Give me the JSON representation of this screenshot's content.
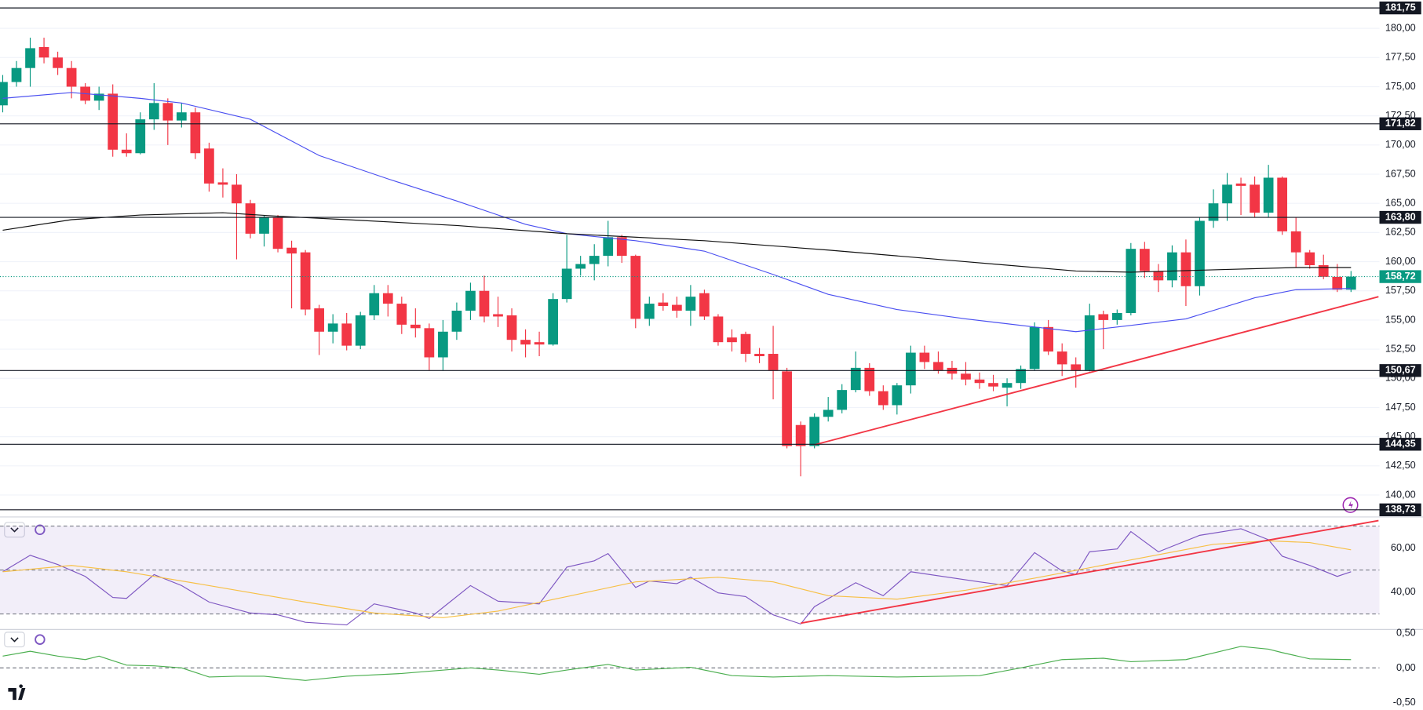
{
  "chart_data": [
    {
      "type": "candlestick",
      "up_color": "#089981",
      "down_color": "#f23645",
      "grid": true,
      "ylim": [
        138.12,
        182.43
      ],
      "yticks": [
        {
          "value": 140,
          "label": "140,00"
        },
        {
          "value": 142.5,
          "label": "142,50"
        },
        {
          "value": 145,
          "label": "145,00"
        },
        {
          "value": 147.5,
          "label": "147,50"
        },
        {
          "value": 150,
          "label": "150,00"
        },
        {
          "value": 152.5,
          "label": "152,50"
        },
        {
          "value": 155,
          "label": "155,00"
        },
        {
          "value": 157.5,
          "label": "157,50"
        },
        {
          "value": 160,
          "label": "160,00"
        },
        {
          "value": 162.5,
          "label": "162,50"
        },
        {
          "value": 165,
          "label": "165,00"
        },
        {
          "value": 167.5,
          "label": "167,50"
        },
        {
          "value": 170,
          "label": "170,00"
        },
        {
          "value": 172.5,
          "label": "172,50"
        },
        {
          "value": 175,
          "label": "175,00"
        },
        {
          "value": 177.5,
          "label": "177,50"
        },
        {
          "value": 180,
          "label": "180,00"
        }
      ],
      "open": [
        173.4,
        175.4,
        176.6,
        178.4,
        177.5,
        176.6,
        175,
        173.8,
        174.4,
        169.6,
        169.3,
        172.2,
        173.6,
        172.1,
        172.8,
        169.7,
        166.8,
        166.6,
        165,
        162.4,
        163.8,
        161.2,
        160.8,
        156,
        154,
        154.7,
        152.8,
        155.4,
        157.3,
        156.4,
        154.6,
        154.3,
        151.8,
        154,
        155.8,
        157.5,
        155.5,
        155.4,
        153.3,
        153.1,
        152.9,
        156.8,
        159.4,
        159.8,
        160.5,
        162.1,
        160.5,
        155.1,
        156.5,
        156.3,
        155.8,
        157.3,
        155.3,
        153.5,
        153.8,
        152.1,
        152.1,
        150.6,
        146,
        144.2,
        146.7,
        147.3,
        149,
        150.9,
        148.9,
        147.7,
        149.4,
        152.2,
        151.4,
        150.9,
        150.4,
        149.9,
        149.6,
        149.2,
        149.6,
        150.8,
        154.4,
        152.3,
        151.2,
        150.7,
        155.5,
        155,
        155.6,
        161.1,
        159.2,
        158.4,
        160.8,
        157.9,
        163.5,
        165,
        166.7,
        166.6,
        164.2,
        167.2,
        162.6,
        160.8,
        159.7,
        158.7,
        157.6
      ],
      "high": [
        176,
        177.2,
        179.2,
        179.2,
        178,
        177.2,
        175.3,
        175,
        175.2,
        171,
        172.8,
        175.3,
        174,
        173.6,
        173.2,
        170.2,
        168,
        167.5,
        165.3,
        164,
        164,
        161.8,
        161,
        156.3,
        155.5,
        155.6,
        155.7,
        158,
        158,
        157,
        156,
        154.7,
        155,
        156.5,
        158.2,
        158.8,
        157,
        156,
        154.2,
        154,
        157.3,
        162.3,
        160.5,
        161.5,
        163.5,
        162.3,
        160.6,
        157,
        157.3,
        157,
        158,
        157.6,
        155.5,
        154.2,
        154,
        152.6,
        154.5,
        150.9,
        146.3,
        147,
        148.4,
        149.5,
        152.3,
        151.3,
        149.4,
        149.6,
        152.8,
        152.8,
        152.3,
        151.5,
        151.4,
        150.5,
        150.3,
        150,
        151.1,
        154.8,
        155,
        153,
        151.8,
        156.4,
        155.8,
        155.9,
        161.6,
        161.7,
        159.8,
        161.4,
        161.9,
        163.8,
        166.2,
        167.6,
        167.2,
        167.3,
        168.3,
        167.3,
        163.8,
        161,
        160.6,
        159.8,
        159.2
      ],
      "low": [
        172.8,
        175,
        175,
        177,
        176,
        174,
        173.5,
        173,
        169,
        169,
        169.2,
        171.3,
        170,
        171.5,
        168.8,
        166,
        165.5,
        160.2,
        162,
        161.3,
        160.8,
        156,
        155.4,
        152,
        153,
        152.4,
        152.5,
        155,
        155.3,
        153.8,
        153.5,
        150.7,
        150.7,
        153.3,
        155,
        154.8,
        154.4,
        152.3,
        151.8,
        151.9,
        152.8,
        156.5,
        158.8,
        158.4,
        159.6,
        159.9,
        154.3,
        154.5,
        155.8,
        155.2,
        154.5,
        155,
        152.8,
        152.3,
        151.4,
        151.3,
        148.2,
        144,
        141.6,
        144,
        146.3,
        147,
        148.8,
        148.5,
        147.3,
        146.9,
        148.7,
        150.8,
        150.4,
        149.9,
        149.4,
        149.1,
        148.9,
        147.6,
        149.1,
        150.7,
        152,
        150.2,
        149.2,
        150.6,
        152.5,
        154.6,
        155.4,
        158.6,
        157.4,
        157.8,
        156.2,
        157.1,
        162.9,
        163.5,
        164,
        163.8,
        163.8,
        162.3,
        159.5,
        159.4,
        158.5,
        157.4,
        157.4
      ],
      "close": [
        175.4,
        176.6,
        178.3,
        177.5,
        176.6,
        175,
        173.8,
        174.4,
        169.6,
        169.3,
        172.2,
        173.6,
        172.1,
        172.8,
        169.3,
        166.7,
        166.6,
        165,
        162.4,
        163.8,
        161.1,
        160.7,
        155.9,
        154,
        154.7,
        152.8,
        155.4,
        157.3,
        156.4,
        154.6,
        154.3,
        151.8,
        154,
        155.8,
        157.5,
        155.3,
        155.3,
        153.3,
        152.9,
        152.9,
        156.8,
        159.4,
        159.8,
        160.5,
        162.1,
        160.5,
        155.1,
        156.4,
        156.2,
        155.8,
        157,
        155.3,
        153.1,
        153.1,
        152.1,
        151.9,
        150.7,
        144.2,
        144.2,
        146.7,
        147.3,
        149,
        150.9,
        148.9,
        147.7,
        149.4,
        152.2,
        151.4,
        150.7,
        150.4,
        149.9,
        149.6,
        149.3,
        149.6,
        150.8,
        154.4,
        152.3,
        151.2,
        150.7,
        155.4,
        155,
        155.6,
        161.1,
        159.2,
        158.4,
        160.8,
        157.9,
        163.5,
        165,
        166.6,
        166.5,
        164.2,
        167.2,
        162.6,
        160.8,
        159.7,
        158.7,
        157.6,
        158.72
      ],
      "lines": [
        {
          "color": "#4a4ff0",
          "x": [
            0,
            5,
            10,
            13,
            18,
            23,
            28,
            33,
            38,
            41,
            46,
            51,
            56,
            60,
            65,
            70,
            75,
            78,
            81,
            86,
            91,
            94,
            98
          ],
          "values": [
            174,
            174.5,
            174,
            173.6,
            172.2,
            169.1,
            167.1,
            165.2,
            163.2,
            162.4,
            161.8,
            160.9,
            158.9,
            157.2,
            155.9,
            155.1,
            154.4,
            154,
            154.4,
            155.1,
            156.9,
            157.6,
            157.7
          ]
        },
        {
          "color": "#111111",
          "x": [
            0,
            5,
            10,
            16,
            20,
            25,
            33,
            41,
            51,
            60,
            70,
            78,
            82,
            88,
            94,
            98
          ],
          "values": [
            162.7,
            163.6,
            164,
            164.2,
            163.9,
            163.6,
            163.1,
            162.4,
            161.8,
            161,
            160,
            159.2,
            159.1,
            159.3,
            159.5,
            159.5
          ]
        }
      ],
      "trendlines": [
        {
          "color": "#f23645",
          "x": [
            59,
            100
          ],
          "values": [
            144.3,
            157
          ]
        }
      ],
      "levels": [
        {
          "value": 181.75,
          "label": "181,75"
        },
        {
          "value": 171.82,
          "label": "171,82"
        },
        {
          "value": 163.8,
          "label": "163,80"
        },
        {
          "value": 150.67,
          "label": "150,67"
        },
        {
          "value": 144.35,
          "label": "144,35"
        },
        {
          "value": 138.73,
          "label": "138,73"
        }
      ],
      "last_price": {
        "value": 158.72,
        "label": "158,72",
        "color": "#089981"
      }
    },
    {
      "type": "line",
      "ylim": [
        22.92,
        74.17
      ],
      "band": [
        30,
        70
      ],
      "band_color": "rgba(126,87,194,0.1)",
      "dashed": [
        70,
        50,
        30
      ],
      "yticks": [
        {
          "value": 40,
          "label": "40,00"
        },
        {
          "value": 60,
          "label": "60,00"
        }
      ],
      "lines": [
        {
          "color": "#7e57c2",
          "x": [
            0,
            2,
            4,
            6,
            8,
            9,
            11,
            13,
            15,
            18,
            20,
            22,
            25,
            27,
            30,
            31,
            32,
            34,
            36,
            39,
            41,
            43,
            44,
            46,
            47,
            49,
            50,
            52,
            54,
            56,
            58,
            59,
            62,
            64,
            66,
            71,
            73,
            75,
            77,
            78,
            79,
            81,
            82,
            84,
            87,
            90,
            92,
            93,
            95,
            97,
            98
          ],
          "values": [
            49.2,
            56.7,
            52.5,
            47.1,
            37.5,
            37.1,
            47.9,
            42.9,
            35.4,
            30.4,
            29.6,
            26.2,
            25,
            34.6,
            30.4,
            27.9,
            32.9,
            42.9,
            35.8,
            34.6,
            51.3,
            54.2,
            57.5,
            42.1,
            45,
            43.8,
            46.7,
            39.6,
            37.9,
            29.6,
            25.4,
            33.3,
            44.2,
            38.3,
            49.2,
            44.6,
            42.9,
            57.9,
            49.6,
            47.9,
            58.3,
            59.6,
            67.5,
            58.3,
            65.8,
            68.8,
            63.8,
            56.3,
            52.1,
            47.1,
            49.2
          ]
        },
        {
          "color": "#f7c046",
          "x": [
            0,
            5,
            9,
            15,
            22,
            27,
            32,
            36,
            41,
            46,
            52,
            56,
            60,
            65,
            70,
            75,
            82,
            88,
            92,
            95,
            98
          ],
          "values": [
            49.2,
            52.1,
            49.2,
            42.9,
            35.4,
            30.4,
            28.3,
            31.3,
            37.9,
            44.6,
            46.7,
            44.6,
            38.3,
            36.7,
            40.8,
            46.3,
            54.6,
            61.7,
            63.3,
            62.5,
            59.2
          ]
        }
      ],
      "trendlines": [
        {
          "color": "#f23645",
          "x": [
            58,
            100
          ],
          "values": [
            25.8,
            72.5
          ]
        }
      ]
    },
    {
      "type": "line",
      "ylim": [
        -0.605,
        0.553
      ],
      "dashed": [
        0
      ],
      "yticks": [
        {
          "value": -0.5,
          "label": "-0,50"
        },
        {
          "value": 0,
          "label": "0,00"
        },
        {
          "value": 0.5,
          "label": "0,50"
        }
      ],
      "lines": [
        {
          "color": "#4caf50",
          "x": [
            0,
            2,
            4,
            6,
            7,
            9,
            11,
            13,
            15,
            17,
            19,
            22,
            25,
            29,
            34,
            36,
            39,
            41,
            44,
            46,
            50,
            53,
            56,
            60,
            65,
            71,
            74,
            77,
            80,
            82,
            86,
            90,
            92,
            93,
            95,
            98
          ],
          "values": [
            0.17,
            0.24,
            0.17,
            0.12,
            0.17,
            0.04,
            0.03,
            0,
            -0.13,
            -0.12,
            -0.12,
            -0.18,
            -0.12,
            -0.08,
            0,
            -0.03,
            -0.09,
            -0.03,
            0.05,
            -0.03,
            0.01,
            -0.11,
            -0.13,
            -0.11,
            -0.13,
            -0.11,
            0,
            0.12,
            0.14,
            0.09,
            0.12,
            0.31,
            0.27,
            0.22,
            0.13,
            0.12
          ]
        }
      ]
    }
  ]
}
